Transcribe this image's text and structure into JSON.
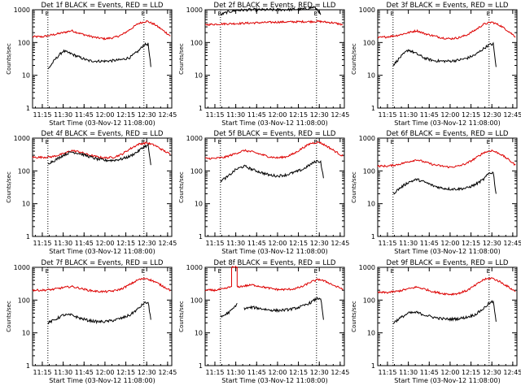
{
  "chart_data": {
    "type": "line",
    "grid": false,
    "x_tick_labels": [
      "11:15",
      "11:30",
      "11:45",
      "12:00",
      "12:15",
      "12:30",
      "12:45"
    ],
    "x_range": [
      "11:08:00",
      "12:48:00"
    ],
    "y_scale": "log",
    "y_range": [
      1,
      1000
    ],
    "y_tick_labels": [
      "1",
      "10",
      "100",
      "1000"
    ],
    "ylabel": "Counts/sec",
    "xlabel": "Start Time (03-Nov-12 11:08:00)",
    "series_colors": {
      "events": "#000000",
      "lld": "#dd0000"
    },
    "vertical_markers": [
      "11:19",
      "12:28"
    ],
    "marker_letter": "E",
    "panels": [
      {
        "title": "Det 1f BLACK = Events, RED = LLD",
        "events": {
          "x": [
            "11:19",
            "11:24",
            "11:30",
            "11:36",
            "11:42",
            "11:48",
            "11:54",
            "12:00",
            "12:06",
            "12:12",
            "12:18",
            "12:24",
            "12:28",
            "12:31",
            "12:33"
          ],
          "y": [
            15,
            30,
            55,
            45,
            35,
            28,
            27,
            27,
            28,
            30,
            35,
            55,
            85,
            90,
            18
          ]
        },
        "lld": {
          "x": [
            "11:08",
            "11:15",
            "11:22",
            "11:30",
            "11:36",
            "11:42",
            "11:48",
            "11:54",
            "12:00",
            "12:06",
            "12:12",
            "12:18",
            "12:24",
            "12:30",
            "12:36",
            "12:42",
            "12:47"
          ],
          "y": [
            150,
            150,
            170,
            200,
            230,
            190,
            160,
            140,
            130,
            140,
            170,
            250,
            380,
            450,
            350,
            230,
            160
          ]
        }
      },
      {
        "title": "Det 2f BLACK = Events, RED = LLD",
        "events": {
          "x": [
            "11:19",
            "11:24",
            "11:30",
            "11:40",
            "11:50",
            "12:00",
            "12:10",
            "12:20",
            "12:26",
            "12:29",
            "12:31"
          ],
          "y": [
            700,
            850,
            950,
            1000,
            1000,
            1000,
            1020,
            1050,
            1200,
            1000,
            700
          ]
        },
        "lld": {
          "x": [
            "11:08",
            "11:20",
            "11:30",
            "11:45",
            "12:00",
            "12:15",
            "12:30",
            "12:40",
            "12:47"
          ],
          "y": [
            350,
            370,
            380,
            400,
            420,
            430,
            440,
            400,
            350
          ]
        }
      },
      {
        "title": "Det 3f BLACK = Events, RED = LLD",
        "events": {
          "x": [
            "11:19",
            "11:24",
            "11:30",
            "11:36",
            "11:42",
            "11:48",
            "11:54",
            "12:00",
            "12:06",
            "12:12",
            "12:18",
            "12:24",
            "12:28",
            "12:31",
            "12:33"
          ],
          "y": [
            20,
            35,
            60,
            45,
            33,
            28,
            27,
            27,
            29,
            33,
            42,
            65,
            85,
            90,
            18
          ]
        },
        "lld": {
          "x": [
            "11:08",
            "11:15",
            "11:22",
            "11:30",
            "11:36",
            "11:42",
            "11:48",
            "11:54",
            "12:00",
            "12:06",
            "12:12",
            "12:18",
            "12:24",
            "12:30",
            "12:36",
            "12:42",
            "12:47"
          ],
          "y": [
            140,
            150,
            165,
            200,
            230,
            185,
            160,
            140,
            130,
            140,
            170,
            240,
            360,
            420,
            330,
            220,
            150
          ]
        }
      },
      {
        "title": "Det 4f BLACK = Events, RED = LLD",
        "events": {
          "x": [
            "11:19",
            "11:24",
            "11:30",
            "11:36",
            "11:42",
            "11:48",
            "11:54",
            "12:00",
            "12:06",
            "12:12",
            "12:18",
            "12:24",
            "12:28",
            "12:31",
            "12:33"
          ],
          "y": [
            170,
            210,
            300,
            380,
            340,
            280,
            230,
            210,
            210,
            230,
            280,
            400,
            550,
            600,
            150
          ]
        },
        "lld": {
          "x": [
            "11:08",
            "11:15",
            "11:22",
            "11:30",
            "11:36",
            "11:42",
            "11:48",
            "11:54",
            "12:00",
            "12:06",
            "12:12",
            "12:18",
            "12:24",
            "12:30",
            "12:36",
            "12:42",
            "12:47"
          ],
          "y": [
            260,
            260,
            270,
            330,
            420,
            380,
            310,
            270,
            250,
            260,
            320,
            470,
            650,
            720,
            600,
            420,
            320
          ]
        }
      },
      {
        "title": "Det 5f BLACK = Events, RED = LLD",
        "events": {
          "x": [
            "11:19",
            "11:24",
            "11:30",
            "11:36",
            "11:42",
            "11:48",
            "11:54",
            "12:00",
            "12:06",
            "12:12",
            "12:18",
            "12:24",
            "12:28",
            "12:31",
            "12:33"
          ],
          "y": [
            50,
            65,
            110,
            140,
            110,
            90,
            75,
            70,
            75,
            90,
            110,
            160,
            200,
            190,
            60
          ]
        },
        "lld": {
          "x": [
            "11:08",
            "11:15",
            "11:22",
            "11:30",
            "11:36",
            "11:42",
            "11:48",
            "11:54",
            "12:00",
            "12:06",
            "12:12",
            "12:18",
            "12:24",
            "12:30",
            "12:36",
            "12:42",
            "12:47"
          ],
          "y": [
            240,
            240,
            260,
            340,
            420,
            380,
            320,
            270,
            250,
            270,
            340,
            500,
            700,
            750,
            550,
            380,
            280
          ]
        }
      },
      {
        "title": "Det 6f BLACK = Events, RED = LLD",
        "events": {
          "x": [
            "11:19",
            "11:24",
            "11:30",
            "11:36",
            "11:42",
            "11:48",
            "11:54",
            "12:00",
            "12:06",
            "12:12",
            "12:18",
            "12:24",
            "12:28",
            "12:31",
            "12:33"
          ],
          "y": [
            20,
            30,
            45,
            55,
            45,
            35,
            30,
            28,
            28,
            30,
            38,
            55,
            85,
            90,
            20
          ]
        },
        "lld": {
          "x": [
            "11:08",
            "11:15",
            "11:22",
            "11:30",
            "11:36",
            "11:42",
            "11:48",
            "11:54",
            "12:00",
            "12:06",
            "12:12",
            "12:18",
            "12:24",
            "12:30",
            "12:36",
            "12:42",
            "12:47"
          ],
          "y": [
            140,
            140,
            155,
            190,
            220,
            185,
            155,
            140,
            130,
            140,
            170,
            240,
            360,
            420,
            330,
            220,
            150
          ]
        }
      },
      {
        "title": "Det 7f BLACK = Events, RED = LLD",
        "events": {
          "x": [
            "11:19",
            "11:24",
            "11:30",
            "11:36",
            "11:42",
            "11:48",
            "11:54",
            "12:00",
            "12:06",
            "12:12",
            "12:18",
            "12:24",
            "12:28",
            "12:31",
            "12:33"
          ],
          "y": [
            20,
            25,
            35,
            35,
            28,
            24,
            22,
            22,
            24,
            28,
            35,
            55,
            80,
            85,
            25
          ]
        },
        "lld": {
          "x": [
            "11:08",
            "11:15",
            "11:22",
            "11:30",
            "11:36",
            "11:42",
            "11:48",
            "11:54",
            "12:00",
            "12:06",
            "12:12",
            "12:18",
            "12:24",
            "12:30",
            "12:36",
            "12:42",
            "12:47"
          ],
          "y": [
            200,
            200,
            210,
            240,
            260,
            230,
            200,
            185,
            180,
            190,
            220,
            300,
            420,
            460,
            360,
            260,
            200
          ]
        }
      },
      {
        "title": "Det 8f BLACK = Events, RED = LLD",
        "events": {
          "x": [
            "11:19",
            "11:22",
            "11:26",
            "11:29",
            "11:31",
            "11:33",
            "11:36",
            "11:42",
            "11:48",
            "11:54",
            "12:00",
            "12:06",
            "12:12",
            "12:18",
            "12:24",
            "12:28",
            "12:31",
            "12:33"
          ],
          "y": [
            30,
            35,
            45,
            60,
            80,
            null,
            55,
            60,
            55,
            50,
            48,
            50,
            55,
            65,
            85,
            110,
            115,
            25
          ]
        },
        "lld": {
          "x": [
            "11:08",
            "11:15",
            "11:22",
            "11:27",
            "11:27",
            "11:31",
            "11:31",
            "11:36",
            "11:42",
            "11:48",
            "11:54",
            "12:00",
            "12:06",
            "12:12",
            "12:18",
            "12:24",
            "12:30",
            "12:36",
            "12:42",
            "12:47"
          ],
          "y": [
            200,
            200,
            220,
            260,
            1000,
            1000,
            250,
            270,
            290,
            260,
            230,
            210,
            210,
            220,
            260,
            360,
            430,
            350,
            260,
            220
          ]
        }
      },
      {
        "title": "Det 9f BLACK = Events, RED = LLD",
        "events": {
          "x": [
            "11:19",
            "11:24",
            "11:30",
            "11:36",
            "11:42",
            "11:48",
            "11:54",
            "12:00",
            "12:06",
            "12:12",
            "12:18",
            "12:24",
            "12:28",
            "12:31",
            "12:33"
          ],
          "y": [
            20,
            28,
            40,
            42,
            35,
            30,
            27,
            26,
            27,
            30,
            36,
            55,
            80,
            90,
            22
          ]
        },
        "lld": {
          "x": [
            "11:08",
            "11:15",
            "11:22",
            "11:30",
            "11:36",
            "11:42",
            "11:48",
            "11:54",
            "12:00",
            "12:06",
            "12:12",
            "12:18",
            "12:24",
            "12:30",
            "12:36",
            "12:42",
            "12:47"
          ],
          "y": [
            170,
            170,
            185,
            220,
            250,
            215,
            180,
            160,
            150,
            160,
            195,
            280,
            420,
            470,
            360,
            250,
            180
          ]
        }
      }
    ]
  }
}
